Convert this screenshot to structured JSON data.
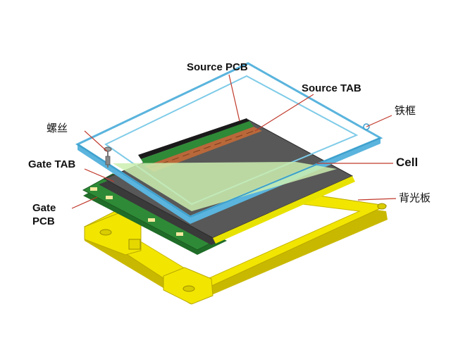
{
  "labels": {
    "source_pcb": "Source PCB",
    "source_tab": "Source TAB",
    "iron_frame": "铁框",
    "screw": "螺丝",
    "gate_tab": "Gate TAB",
    "cell": "Cell",
    "gate_pcb_line1": "Gate",
    "gate_pcb_line2": "PCB",
    "backlight": "背光板"
  },
  "colors": {
    "frame_outline": "#7ecbe8",
    "frame_edge": "#5ab4dd",
    "cell_panel": "#555555",
    "glass_tint": "#cdeeb0",
    "backlight_frame": "#f2e600",
    "backlight_edge": "#c9b800",
    "pcb_green": "#2e8a36",
    "tab_copper": "#b9683a",
    "leader_line": "#c0392b"
  }
}
